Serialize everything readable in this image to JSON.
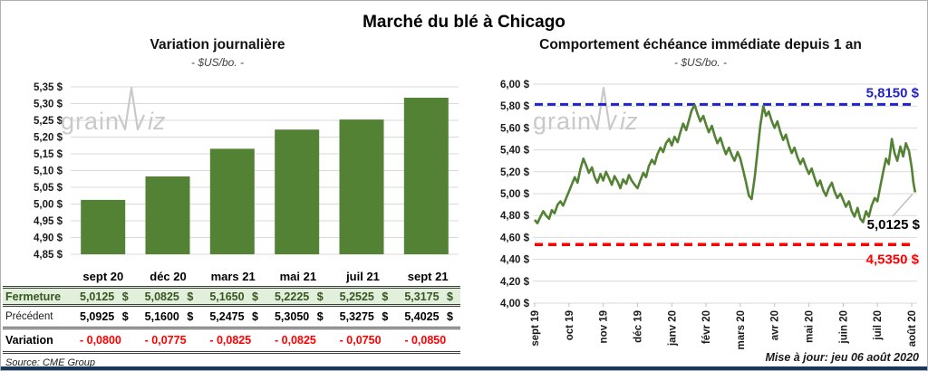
{
  "header": {
    "title": "Marché du blé à Chicago"
  },
  "footer": {
    "source": "Source: CME Group",
    "updated": "Mise à jour: jeu 06 août 2020"
  },
  "watermark": {
    "part1": "grain",
    "part2": "iz"
  },
  "colors": {
    "green": "#548235",
    "table_green_bg": "#e2efda",
    "table_green_text": "#375623",
    "negative_red": "#ff0000",
    "max_blue": "#2222cc",
    "gridline": "#d9d9d9",
    "bottom_bar": "#17375e",
    "watermark": "#c9c9c9",
    "callout_gray": "#bfbfbf"
  },
  "chart_data": [
    {
      "type": "bar",
      "title": "Variation journalière",
      "subtitle": "- $US/bo. -",
      "categories": [
        "sept 20",
        "déc 20",
        "mars 21",
        "mai 21",
        "juil 21",
        "sept 21"
      ],
      "values": [
        5.0125,
        5.0825,
        5.165,
        5.2225,
        5.2525,
        5.3175
      ],
      "ylim": [
        4.85,
        5.35
      ],
      "ytick_step": 0.05,
      "y_tick_labels": [
        "5,35 $",
        "5,30 $",
        "5,25 $",
        "5,20 $",
        "5,15 $",
        "5,10 $",
        "5,05 $",
        "5,00 $",
        "4,95 $",
        "4,90 $",
        "4,85 $"
      ],
      "bar_color": "#548235",
      "grid": true,
      "legend": "none"
    },
    {
      "type": "line",
      "title": "Comportement échéance immédiate depuis 1 an",
      "subtitle": "- $US/bo. -",
      "x_tick_labels": [
        "sept 19",
        "oct 19",
        "nov 19",
        "déc 19",
        "janv 20",
        "févr 20",
        "mars 20",
        "avr 20",
        "mai 20",
        "juin 20",
        "juil 20",
        "août 20"
      ],
      "y_tick_labels": [
        "6,00 $",
        "5,80 $",
        "5,60 $",
        "5,40 $",
        "5,20 $",
        "5,00 $",
        "4,80 $",
        "4,60 $",
        "4,40 $",
        "4,20 $",
        "4,00 $"
      ],
      "ylim": [
        4.0,
        6.0
      ],
      "ytick_step": 0.2,
      "x_domain": [
        0,
        11.15
      ],
      "line_color": "#548235",
      "grid": true,
      "legend": "none",
      "max_line": {
        "value": 5.815,
        "label": "5,8150 $",
        "color": "#2222cc"
      },
      "min_line": {
        "value": 4.535,
        "label": "4,5350 $",
        "color": "#ff0000"
      },
      "last_point": {
        "value": 5.0125,
        "label": "5,0125 $"
      },
      "points": [
        [
          0.0,
          4.76
        ],
        [
          0.08,
          4.73
        ],
        [
          0.17,
          4.79
        ],
        [
          0.25,
          4.84
        ],
        [
          0.33,
          4.8
        ],
        [
          0.42,
          4.77
        ],
        [
          0.5,
          4.85
        ],
        [
          0.58,
          4.82
        ],
        [
          0.67,
          4.9
        ],
        [
          0.75,
          4.93
        ],
        [
          0.83,
          4.89
        ],
        [
          0.92,
          4.96
        ],
        [
          1.0,
          5.02
        ],
        [
          1.08,
          5.08
        ],
        [
          1.17,
          5.15
        ],
        [
          1.25,
          5.1
        ],
        [
          1.33,
          5.22
        ],
        [
          1.42,
          5.32
        ],
        [
          1.5,
          5.26
        ],
        [
          1.58,
          5.19
        ],
        [
          1.67,
          5.24
        ],
        [
          1.75,
          5.15
        ],
        [
          1.83,
          5.1
        ],
        [
          1.92,
          5.18
        ],
        [
          2.0,
          5.12
        ],
        [
          2.08,
          5.2
        ],
        [
          2.17,
          5.14
        ],
        [
          2.25,
          5.08
        ],
        [
          2.33,
          5.16
        ],
        [
          2.42,
          5.11
        ],
        [
          2.5,
          5.05
        ],
        [
          2.58,
          5.13
        ],
        [
          2.67,
          5.09
        ],
        [
          2.75,
          5.17
        ],
        [
          2.83,
          5.12
        ],
        [
          2.92,
          5.08
        ],
        [
          3.0,
          5.05
        ],
        [
          3.08,
          5.12
        ],
        [
          3.17,
          5.19
        ],
        [
          3.25,
          5.15
        ],
        [
          3.33,
          5.25
        ],
        [
          3.42,
          5.31
        ],
        [
          3.5,
          5.27
        ],
        [
          3.58,
          5.36
        ],
        [
          3.67,
          5.42
        ],
        [
          3.75,
          5.38
        ],
        [
          3.83,
          5.46
        ],
        [
          3.92,
          5.5
        ],
        [
          4.0,
          5.44
        ],
        [
          4.08,
          5.52
        ],
        [
          4.17,
          5.47
        ],
        [
          4.25,
          5.56
        ],
        [
          4.33,
          5.64
        ],
        [
          4.42,
          5.58
        ],
        [
          4.5,
          5.67
        ],
        [
          4.58,
          5.76
        ],
        [
          4.67,
          5.81
        ],
        [
          4.75,
          5.73
        ],
        [
          4.83,
          5.66
        ],
        [
          4.92,
          5.71
        ],
        [
          5.0,
          5.63
        ],
        [
          5.08,
          5.56
        ],
        [
          5.17,
          5.62
        ],
        [
          5.25,
          5.53
        ],
        [
          5.33,
          5.46
        ],
        [
          5.42,
          5.51
        ],
        [
          5.5,
          5.43
        ],
        [
          5.58,
          5.36
        ],
        [
          5.67,
          5.42
        ],
        [
          5.75,
          5.35
        ],
        [
          5.83,
          5.3
        ],
        [
          5.92,
          5.38
        ],
        [
          6.0,
          5.32
        ],
        [
          6.08,
          5.22
        ],
        [
          6.17,
          5.1
        ],
        [
          6.25,
          4.98
        ],
        [
          6.33,
          4.95
        ],
        [
          6.42,
          5.15
        ],
        [
          6.5,
          5.38
        ],
        [
          6.58,
          5.62
        ],
        [
          6.67,
          5.8
        ],
        [
          6.75,
          5.71
        ],
        [
          6.83,
          5.75
        ],
        [
          6.92,
          5.66
        ],
        [
          7.0,
          5.6
        ],
        [
          7.08,
          5.66
        ],
        [
          7.17,
          5.56
        ],
        [
          7.25,
          5.49
        ],
        [
          7.33,
          5.54
        ],
        [
          7.42,
          5.44
        ],
        [
          7.5,
          5.37
        ],
        [
          7.58,
          5.42
        ],
        [
          7.67,
          5.33
        ],
        [
          7.75,
          5.27
        ],
        [
          7.83,
          5.32
        ],
        [
          7.92,
          5.24
        ],
        [
          8.0,
          5.18
        ],
        [
          8.08,
          5.23
        ],
        [
          8.17,
          5.14
        ],
        [
          8.25,
          5.07
        ],
        [
          8.33,
          5.12
        ],
        [
          8.42,
          5.03
        ],
        [
          8.5,
          4.98
        ],
        [
          8.58,
          5.05
        ],
        [
          8.67,
          5.1
        ],
        [
          8.75,
          5.02
        ],
        [
          8.83,
          4.96
        ],
        [
          8.92,
          5.0
        ],
        [
          9.0,
          4.94
        ],
        [
          9.08,
          4.88
        ],
        [
          9.17,
          4.93
        ],
        [
          9.25,
          4.84
        ],
        [
          9.33,
          4.79
        ],
        [
          9.42,
          4.87
        ],
        [
          9.5,
          4.77
        ],
        [
          9.58,
          4.74
        ],
        [
          9.67,
          4.84
        ],
        [
          9.75,
          4.79
        ],
        [
          9.83,
          4.89
        ],
        [
          9.92,
          4.96
        ],
        [
          10.0,
          4.93
        ],
        [
          10.08,
          5.06
        ],
        [
          10.17,
          5.2
        ],
        [
          10.25,
          5.32
        ],
        [
          10.33,
          5.27
        ],
        [
          10.42,
          5.5
        ],
        [
          10.5,
          5.37
        ],
        [
          10.58,
          5.3
        ],
        [
          10.67,
          5.43
        ],
        [
          10.75,
          5.34
        ],
        [
          10.83,
          5.46
        ],
        [
          10.92,
          5.39
        ],
        [
          11.0,
          5.24
        ],
        [
          11.05,
          5.1
        ],
        [
          11.1,
          5.0125
        ]
      ]
    }
  ],
  "table": {
    "columns": [
      "sept 20",
      "déc 20",
      "mars 21",
      "mai 21",
      "juil 21",
      "sept 21"
    ],
    "rows": [
      {
        "label": "Fermeture",
        "style": "close",
        "unit": "$",
        "values": [
          "5,0125",
          "5,0825",
          "5,1650",
          "5,2225",
          "5,2525",
          "5,3175"
        ]
      },
      {
        "label": "Précédent",
        "style": "prev",
        "unit": "$",
        "values": [
          "5,0925",
          "5,1600",
          "5,2475",
          "5,3050",
          "5,3275",
          "5,4025"
        ]
      },
      {
        "label": "Variation",
        "style": "var",
        "unit": "",
        "values": [
          "- 0,0800",
          "- 0,0775",
          "- 0,0825",
          "- 0,0825",
          "- 0,0750",
          "- 0,0850"
        ]
      }
    ]
  }
}
